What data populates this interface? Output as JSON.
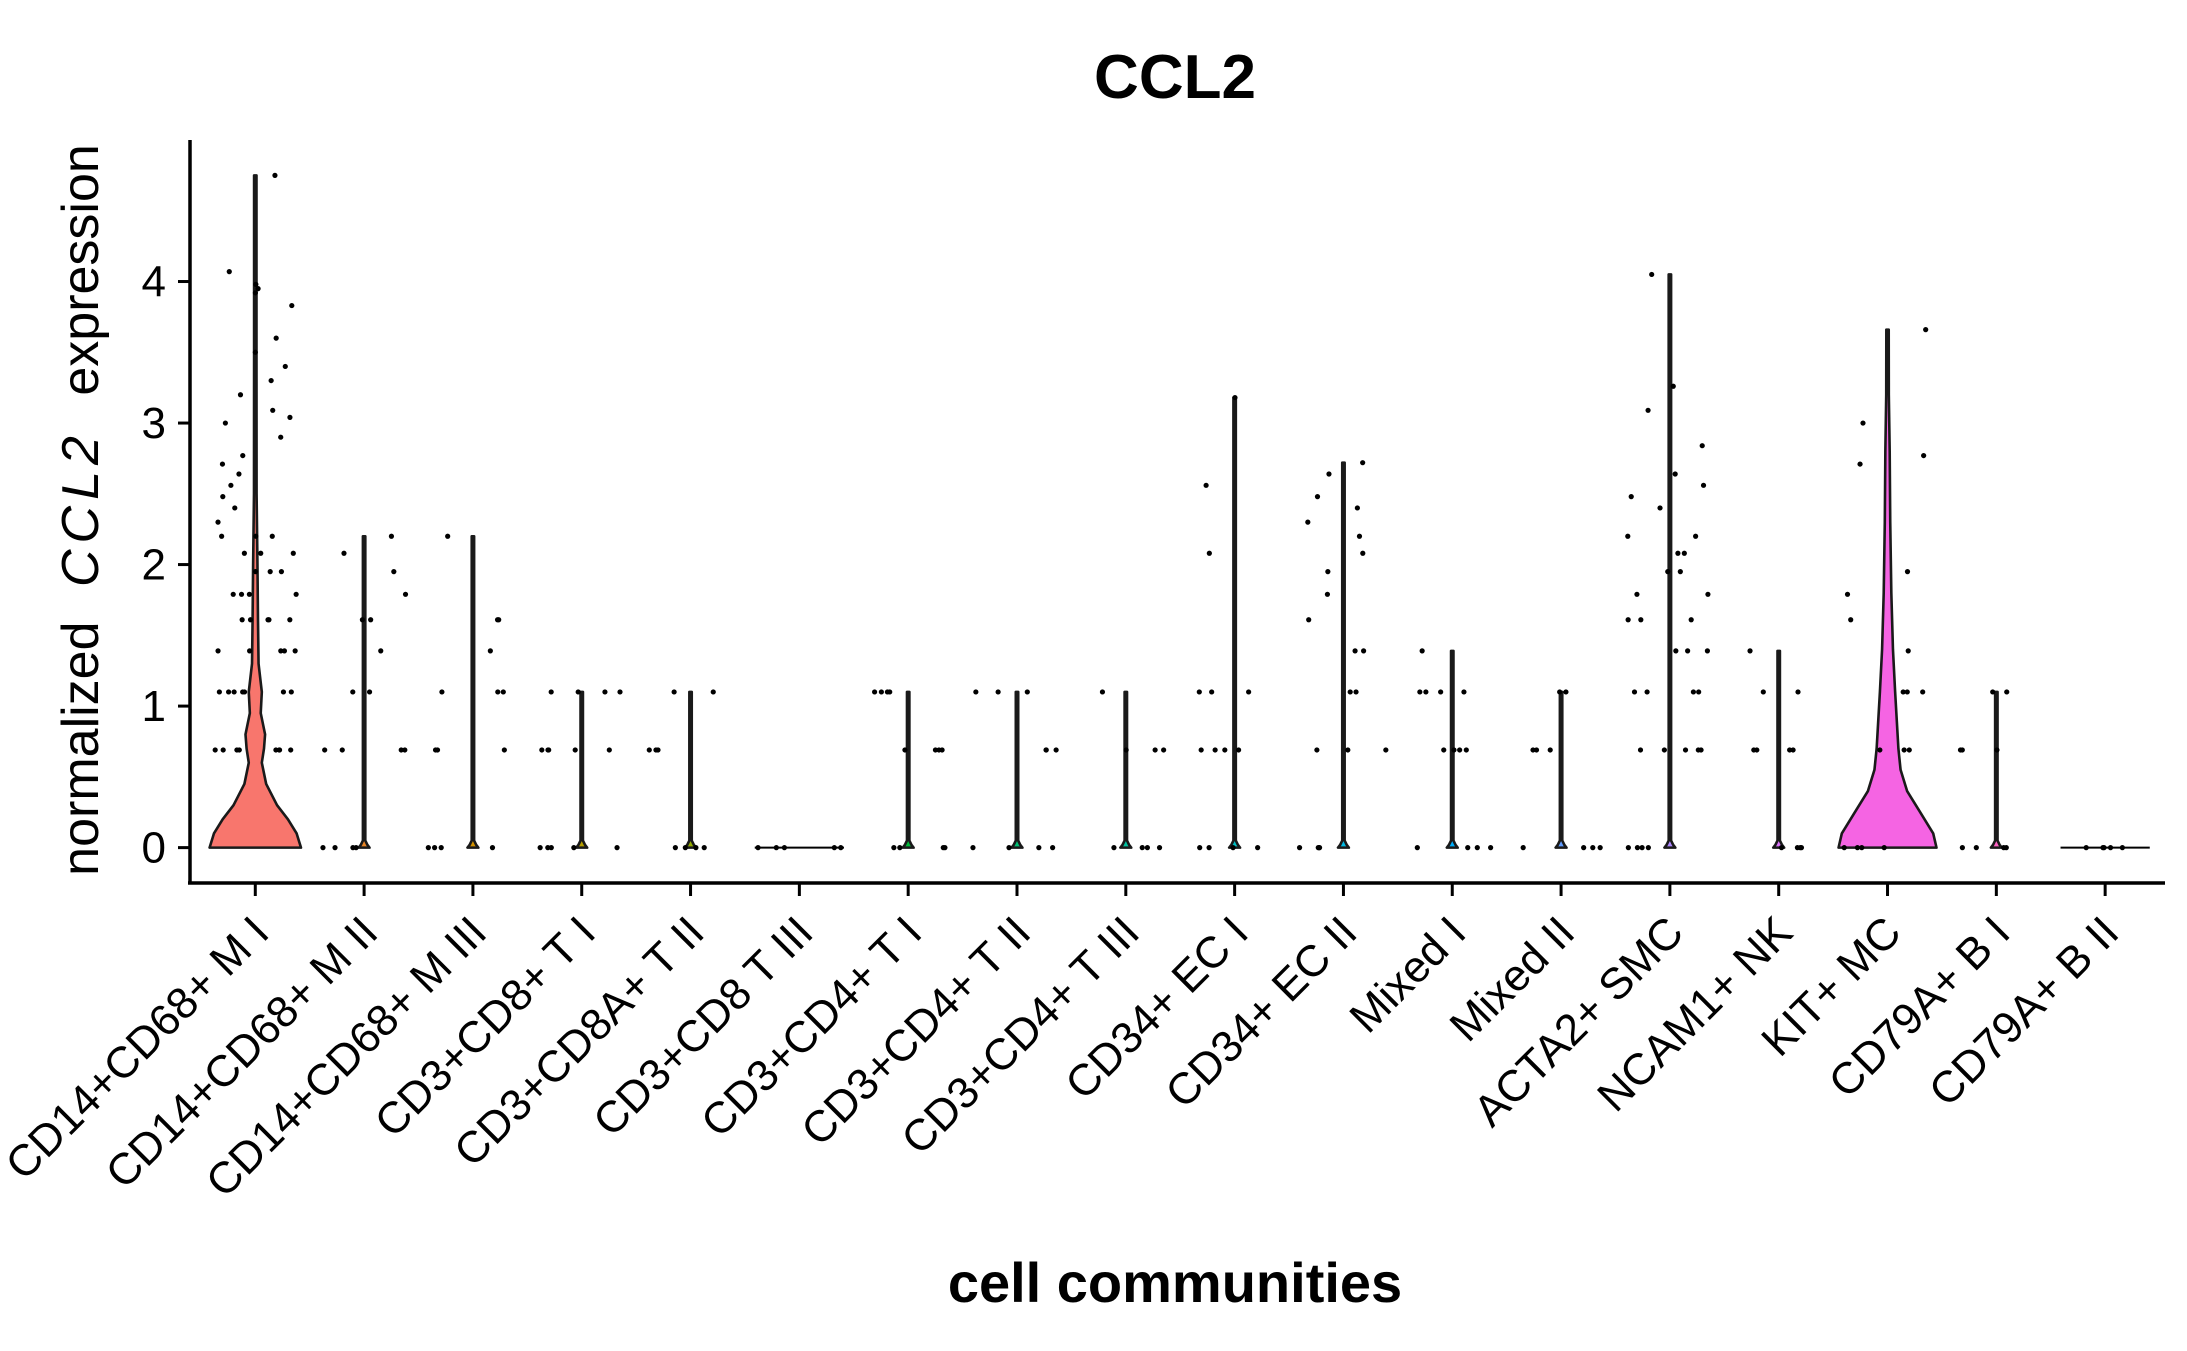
{
  "chart_data": {
    "type": "violin",
    "title": "CCL2",
    "xlabel": "cell communities",
    "ylabel_parts": [
      "normalized",
      "CCL2",
      "expression"
    ],
    "ylim": [
      -0.25,
      5.0
    ],
    "yticks": [
      0,
      1,
      2,
      3,
      4
    ],
    "categories": [
      "CD14+CD68+ M I",
      "CD14+CD68+ M II",
      "CD14+CD68+ M III",
      "CD3+CD8+ T I",
      "CD3+CD8A+ T II",
      "CD3+CD8 T III",
      "CD3+CD4+ T I",
      "CD3+CD4+ T II",
      "CD3+CD4+ T III",
      "CD34+ EC I",
      "CD34+ EC II",
      "Mixed I",
      "Mixed II",
      "ACTA2+ SMC",
      "NCAM1+ NK",
      "KIT+ MC",
      "CD79A+ B I",
      "CD79A+ B II"
    ],
    "max_expression": [
      4.75,
      2.2,
      2.2,
      1.1,
      1.1,
      0.0,
      1.1,
      1.1,
      1.1,
      3.18,
      2.72,
      1.39,
      1.1,
      4.05,
      1.39,
      3.66,
      1.1,
      0.0
    ],
    "fill_colors": [
      "#F8766D",
      "#E88526",
      "#D39200",
      "#B79F00",
      "#93AA00",
      "#5EB300",
      "#00BA38",
      "#00BF74",
      "#00C19F",
      "#00BFC4",
      "#00B9E3",
      "#00ADFA",
      "#619CFF",
      "#AE87FF",
      "#DB72FB",
      "#F564E3",
      "#FF61C3",
      "#FF699C"
    ],
    "violin_profiles": [
      {
        "values": [
          0,
          0.1,
          0.2,
          0.3,
          0.45,
          0.6,
          0.7,
          0.8,
          0.95,
          1.1,
          1.3,
          1.6,
          2.0,
          2.5,
          3.5,
          4.75
        ],
        "halfwidths": [
          0.42,
          0.38,
          0.3,
          0.2,
          0.1,
          0.06,
          0.08,
          0.09,
          0.05,
          0.06,
          0.03,
          0.025,
          0.02,
          0.012,
          0.008,
          0.004
        ]
      },
      {
        "values": [
          0,
          0.02,
          0.05,
          2.2
        ],
        "halfwidths": [
          0.05,
          0.03,
          0.004,
          0.004
        ]
      },
      {
        "values": [
          0,
          0.02,
          0.05,
          2.2
        ],
        "halfwidths": [
          0.05,
          0.03,
          0.004,
          0.004
        ]
      },
      {
        "values": [
          0,
          0.02,
          0.05,
          1.1
        ],
        "halfwidths": [
          0.05,
          0.03,
          0.004,
          0.004
        ]
      },
      {
        "values": [
          0,
          0.02,
          0.05,
          1.1
        ],
        "halfwidths": [
          0.05,
          0.03,
          0.004,
          0.004
        ]
      },
      {
        "values": [
          0,
          0.01
        ],
        "halfwidths": [
          0.01,
          0.004
        ]
      },
      {
        "values": [
          0,
          0.02,
          0.05,
          1.1
        ],
        "halfwidths": [
          0.05,
          0.03,
          0.004,
          0.004
        ]
      },
      {
        "values": [
          0,
          0.02,
          0.05,
          1.1
        ],
        "halfwidths": [
          0.05,
          0.03,
          0.004,
          0.004
        ]
      },
      {
        "values": [
          0,
          0.02,
          0.05,
          1.1
        ],
        "halfwidths": [
          0.05,
          0.03,
          0.004,
          0.004
        ]
      },
      {
        "values": [
          0,
          0.02,
          0.05,
          3.18
        ],
        "halfwidths": [
          0.05,
          0.03,
          0.004,
          0.004
        ]
      },
      {
        "values": [
          0,
          0.02,
          0.05,
          2.72
        ],
        "halfwidths": [
          0.05,
          0.03,
          0.004,
          0.004
        ]
      },
      {
        "values": [
          0,
          0.02,
          0.05,
          1.39
        ],
        "halfwidths": [
          0.05,
          0.03,
          0.004,
          0.004
        ]
      },
      {
        "values": [
          0,
          0.02,
          0.05,
          1.1
        ],
        "halfwidths": [
          0.05,
          0.03,
          0.004,
          0.004
        ]
      },
      {
        "values": [
          0,
          0.02,
          0.05,
          4.05
        ],
        "halfwidths": [
          0.05,
          0.03,
          0.004,
          0.004
        ]
      },
      {
        "values": [
          0,
          0.02,
          0.05,
          1.39
        ],
        "halfwidths": [
          0.05,
          0.03,
          0.004,
          0.004
        ]
      },
      {
        "values": [
          0,
          0.1,
          0.25,
          0.4,
          0.55,
          0.7,
          0.9,
          1.1,
          1.4,
          1.8,
          2.3,
          2.8,
          3.2,
          3.66
        ],
        "halfwidths": [
          0.45,
          0.42,
          0.3,
          0.18,
          0.12,
          0.1,
          0.085,
          0.07,
          0.05,
          0.035,
          0.025,
          0.02,
          0.012,
          0.004
        ]
      },
      {
        "values": [
          0,
          0.02,
          0.05,
          1.1
        ],
        "halfwidths": [
          0.05,
          0.03,
          0.004,
          0.004
        ]
      },
      {
        "values": [
          0,
          0.01
        ],
        "halfwidths": [
          0.01,
          0.004
        ]
      }
    ],
    "points_by_category": [
      [
        [
          0,
          0.69
        ],
        [
          1,
          0.69
        ],
        [
          2,
          0.69
        ],
        [
          3,
          0.69
        ],
        [
          4,
          0.69
        ],
        [
          5,
          0.69
        ],
        [
          6,
          0.69
        ],
        [
          7,
          0.69
        ],
        [
          8,
          1.1
        ],
        [
          9,
          1.1
        ],
        [
          10,
          1.1
        ],
        [
          11,
          1.1
        ],
        [
          12,
          1.1
        ],
        [
          13,
          1.1
        ],
        [
          14,
          1.1
        ],
        [
          15,
          1.39
        ],
        [
          16,
          1.39
        ],
        [
          17,
          1.39
        ],
        [
          18,
          1.39
        ],
        [
          19,
          1.39
        ],
        [
          20,
          1.61
        ],
        [
          21,
          1.61
        ],
        [
          22,
          1.61
        ],
        [
          23,
          1.61
        ],
        [
          24,
          1.61
        ],
        [
          25,
          1.79
        ],
        [
          26,
          1.79
        ],
        [
          27,
          1.79
        ],
        [
          28,
          1.79
        ],
        [
          29,
          1.95
        ],
        [
          30,
          1.95
        ],
        [
          31,
          1.95
        ],
        [
          32,
          2.08
        ],
        [
          33,
          2.08
        ],
        [
          34,
          2.08
        ],
        [
          35,
          2.2
        ],
        [
          36,
          2.2
        ],
        [
          37,
          2.2
        ],
        [
          38,
          2.3
        ],
        [
          39,
          2.4
        ],
        [
          40,
          2.48
        ],
        [
          41,
          2.56
        ],
        [
          42,
          2.64
        ],
        [
          43,
          2.71
        ],
        [
          44,
          2.77
        ],
        [
          45,
          2.9
        ],
        [
          46,
          3.0
        ],
        [
          47,
          3.04
        ],
        [
          48,
          3.09
        ],
        [
          49,
          3.2
        ],
        [
          50,
          3.3
        ],
        [
          51,
          3.4
        ],
        [
          52,
          3.5
        ],
        [
          53,
          3.6
        ],
        [
          54,
          3.83
        ],
        [
          55,
          3.92
        ],
        [
          56,
          3.95
        ],
        [
          57,
          3.98
        ],
        [
          58,
          4.07
        ],
        [
          59,
          4.75
        ]
      ],
      [
        [
          0,
          0
        ],
        [
          1,
          0
        ],
        [
          2,
          0
        ],
        [
          3,
          0
        ],
        [
          4,
          0.69
        ],
        [
          5,
          0.69
        ],
        [
          6,
          0.69
        ],
        [
          7,
          0.69
        ],
        [
          8,
          1.1
        ],
        [
          9,
          1.1
        ],
        [
          10,
          1.39
        ],
        [
          11,
          1.61
        ],
        [
          12,
          1.61
        ],
        [
          13,
          1.79
        ],
        [
          14,
          1.95
        ],
        [
          15,
          2.08
        ],
        [
          16,
          2.2
        ]
      ],
      [
        [
          0,
          0
        ],
        [
          1,
          0
        ],
        [
          2,
          0
        ],
        [
          3,
          0
        ],
        [
          4,
          0.69
        ],
        [
          5,
          0.69
        ],
        [
          6,
          0.69
        ],
        [
          7,
          1.1
        ],
        [
          8,
          1.1
        ],
        [
          9,
          1.1
        ],
        [
          10,
          1.39
        ],
        [
          11,
          1.61
        ],
        [
          12,
          1.61
        ],
        [
          13,
          2.2
        ]
      ],
      [
        [
          0,
          0
        ],
        [
          1,
          0
        ],
        [
          2,
          0
        ],
        [
          3,
          0
        ],
        [
          4,
          0
        ],
        [
          5,
          0.69
        ],
        [
          6,
          0.69
        ],
        [
          7,
          0.69
        ],
        [
          8,
          0.69
        ],
        [
          9,
          0.69
        ],
        [
          10,
          1.1
        ],
        [
          11,
          1.1
        ],
        [
          12,
          1.1
        ],
        [
          13,
          1.1
        ]
      ],
      [
        [
          0,
          0
        ],
        [
          1,
          0
        ],
        [
          2,
          0
        ],
        [
          3,
          0
        ],
        [
          4,
          0.69
        ],
        [
          5,
          0.69
        ],
        [
          6,
          0.69
        ],
        [
          7,
          1.1
        ],
        [
          8,
          1.1
        ]
      ],
      [
        [
          0,
          0
        ],
        [
          1,
          0
        ],
        [
          2,
          0
        ],
        [
          3,
          0
        ],
        [
          4,
          0
        ]
      ],
      [
        [
          0,
          0
        ],
        [
          1,
          0
        ],
        [
          2,
          0
        ],
        [
          3,
          0
        ],
        [
          4,
          0.69
        ],
        [
          5,
          0.69
        ],
        [
          6,
          0.69
        ],
        [
          7,
          0.69
        ],
        [
          8,
          1.1
        ],
        [
          9,
          1.1
        ],
        [
          10,
          1.1
        ],
        [
          11,
          1.1
        ]
      ],
      [
        [
          0,
          0
        ],
        [
          1,
          0
        ],
        [
          2,
          0
        ],
        [
          3,
          0
        ],
        [
          4,
          0.69
        ],
        [
          5,
          0.69
        ],
        [
          6,
          0.69
        ],
        [
          7,
          1.1
        ],
        [
          8,
          1.1
        ],
        [
          9,
          1.1
        ]
      ],
      [
        [
          0,
          0
        ],
        [
          1,
          0
        ],
        [
          2,
          0
        ],
        [
          3,
          0
        ],
        [
          4,
          0.69
        ],
        [
          5,
          0.69
        ],
        [
          6,
          0.69
        ],
        [
          7,
          1.1
        ]
      ],
      [
        [
          0,
          0
        ],
        [
          1,
          0
        ],
        [
          2,
          0
        ],
        [
          3,
          0
        ],
        [
          4,
          0.69
        ],
        [
          5,
          0.69
        ],
        [
          6,
          0.69
        ],
        [
          7,
          0.69
        ],
        [
          8,
          1.1
        ],
        [
          9,
          1.1
        ],
        [
          10,
          1.1
        ],
        [
          11,
          2.08
        ],
        [
          12,
          2.56
        ],
        [
          13,
          3.18
        ]
      ],
      [
        [
          0,
          0
        ],
        [
          1,
          0
        ],
        [
          2,
          0
        ],
        [
          3,
          0
        ],
        [
          4,
          0.69
        ],
        [
          5,
          0.69
        ],
        [
          6,
          0.69
        ],
        [
          7,
          1.1
        ],
        [
          8,
          1.1
        ],
        [
          9,
          1.39
        ],
        [
          10,
          1.39
        ],
        [
          11,
          1.61
        ],
        [
          12,
          1.79
        ],
        [
          13,
          1.95
        ],
        [
          14,
          2.08
        ],
        [
          15,
          2.2
        ],
        [
          16,
          2.3
        ],
        [
          17,
          2.4
        ],
        [
          18,
          2.48
        ],
        [
          19,
          2.64
        ],
        [
          20,
          2.72
        ]
      ],
      [
        [
          0,
          0
        ],
        [
          1,
          0
        ],
        [
          2,
          0
        ],
        [
          3,
          0
        ],
        [
          4,
          0.69
        ],
        [
          5,
          0.69
        ],
        [
          6,
          0.69
        ],
        [
          7,
          0.69
        ],
        [
          8,
          1.1
        ],
        [
          9,
          1.1
        ],
        [
          10,
          1.1
        ],
        [
          11,
          1.1
        ],
        [
          12,
          1.39
        ]
      ],
      [
        [
          0,
          0
        ],
        [
          1,
          0
        ],
        [
          2,
          0
        ],
        [
          3,
          0
        ],
        [
          4,
          0.69
        ],
        [
          5,
          0.69
        ],
        [
          6,
          0.69
        ],
        [
          7,
          1.1
        ],
        [
          8,
          1.1
        ]
      ],
      [
        [
          0,
          0
        ],
        [
          1,
          0
        ],
        [
          2,
          0
        ],
        [
          3,
          0
        ],
        [
          4,
          0.69
        ],
        [
          5,
          0.69
        ],
        [
          6,
          0.69
        ],
        [
          7,
          0.69
        ],
        [
          8,
          0.69
        ],
        [
          9,
          1.1
        ],
        [
          10,
          1.1
        ],
        [
          11,
          1.1
        ],
        [
          12,
          1.1
        ],
        [
          13,
          1.39
        ],
        [
          14,
          1.39
        ],
        [
          15,
          1.39
        ],
        [
          16,
          1.61
        ],
        [
          17,
          1.61
        ],
        [
          18,
          1.61
        ],
        [
          19,
          1.79
        ],
        [
          20,
          1.79
        ],
        [
          21,
          1.95
        ],
        [
          22,
          1.95
        ],
        [
          23,
          2.08
        ],
        [
          24,
          2.08
        ],
        [
          25,
          2.2
        ],
        [
          26,
          2.2
        ],
        [
          27,
          2.4
        ],
        [
          28,
          2.48
        ],
        [
          29,
          2.56
        ],
        [
          30,
          2.64
        ],
        [
          31,
          2.84
        ],
        [
          32,
          3.09
        ],
        [
          33,
          3.26
        ],
        [
          34,
          4.05
        ]
      ],
      [
        [
          0,
          0
        ],
        [
          1,
          0
        ],
        [
          2,
          0
        ],
        [
          3,
          0
        ],
        [
          4,
          0.69
        ],
        [
          5,
          0.69
        ],
        [
          6,
          0.69
        ],
        [
          7,
          0.69
        ],
        [
          8,
          1.1
        ],
        [
          9,
          1.1
        ],
        [
          10,
          1.39
        ]
      ],
      [
        [
          0,
          0
        ],
        [
          1,
          0
        ],
        [
          2,
          0
        ],
        [
          3,
          0
        ],
        [
          4,
          0.69
        ],
        [
          5,
          0.69
        ],
        [
          6,
          0.69
        ],
        [
          7,
          1.1
        ],
        [
          8,
          1.1
        ],
        [
          9,
          1.1
        ],
        [
          10,
          1.39
        ],
        [
          11,
          1.61
        ],
        [
          12,
          1.79
        ],
        [
          13,
          1.95
        ],
        [
          14,
          2.71
        ],
        [
          15,
          2.77
        ],
        [
          16,
          3.0
        ],
        [
          17,
          3.66
        ]
      ],
      [
        [
          0,
          0
        ],
        [
          1,
          0
        ],
        [
          2,
          0
        ],
        [
          3,
          0
        ],
        [
          4,
          0.69
        ],
        [
          5,
          0.69
        ],
        [
          6,
          0.69
        ],
        [
          7,
          1.1
        ],
        [
          8,
          1.1
        ]
      ],
      [
        [
          0,
          0
        ],
        [
          1,
          0
        ],
        [
          2,
          0
        ],
        [
          3,
          0
        ],
        [
          4,
          0
        ]
      ]
    ],
    "grid": false,
    "legend": "none"
  }
}
